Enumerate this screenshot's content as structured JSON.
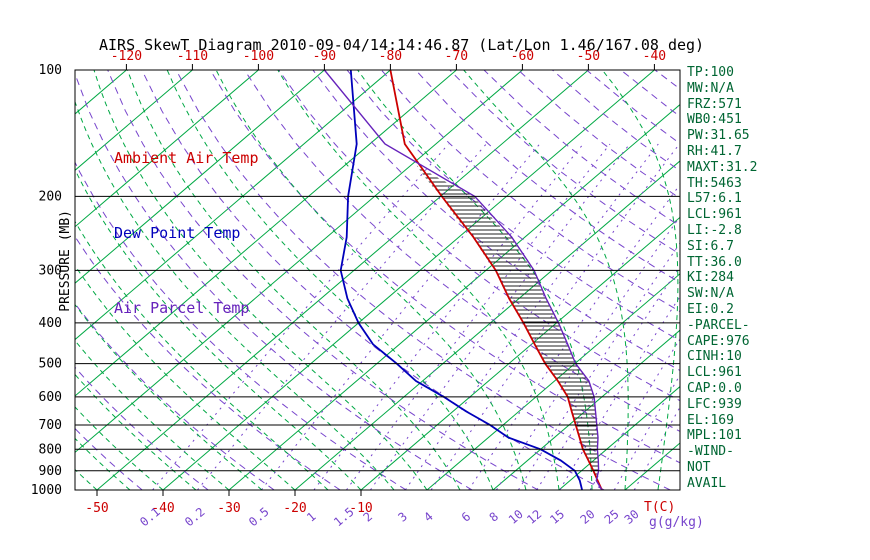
{
  "title": "AIRS SkewT Diagram 2010-09-04/14:14:46.87 (Lat/Lon 1.46/167.08 deg)",
  "colors": {
    "temperature": "#cc0000",
    "dewpoint": "#0000bb",
    "parcel": "#6622bb",
    "isotherm": "#00a844",
    "moist_adiabat": "#00a844",
    "dry_adiabat": "#7744cc",
    "mixing_ratio": "#7744cc",
    "stats_text": "#006633",
    "axis": "#000000",
    "hatch": "#222222"
  },
  "legend": {
    "items": [
      {
        "label": "Ambient Air Temp",
        "series": "temperature"
      },
      {
        "label": "Dew Point Temp",
        "series": "dewpoint"
      },
      {
        "label": "Air Parcel Temp",
        "series": "parcel"
      }
    ]
  },
  "axes": {
    "pressure_label": "PRESSURE (MB)",
    "pressure_ticks": [
      100,
      200,
      300,
      400,
      500,
      600,
      700,
      800,
      900,
      1000
    ],
    "pressure_range": [
      100,
      1000
    ],
    "pressure_scale": "log",
    "top_temp_ticks": [
      -120,
      -110,
      -100,
      -90,
      -80,
      -70,
      -60,
      -50,
      -40
    ],
    "bottom_temp_ticks": [
      -50,
      -40,
      -30,
      -20,
      -10
    ],
    "temp_unit_label": "T(C)",
    "mixing_ratio_ticks": [
      0.1,
      0.2,
      0.5,
      1,
      1.5,
      2,
      3,
      4,
      6,
      8,
      10,
      12,
      15,
      20,
      25,
      30
    ],
    "mixing_unit_label": "g(g/kg)"
  },
  "stats": {
    "lines": [
      "TP:100",
      "MW:N/A",
      "FRZ:571",
      "WB0:451",
      "PW:31.65",
      "RH:41.7",
      "MAXT:31.2",
      "TH:5463",
      "L57:6.1",
      "LCL:961",
      "LI:-2.8",
      "SI:6.7",
      "TT:36.0",
      "KI:284",
      "SW:N/A",
      "EI:0.2",
      "-PARCEL-",
      "CAPE:976",
      "CINH:10",
      "LCL:961",
      "CAP:0.0",
      "LFC:939",
      "EL:169",
      "MPL:101",
      "-WIND-",
      "NOT",
      "AVAIL"
    ]
  },
  "chart_data": {
    "type": "line",
    "subtype": "skew-t-log-p",
    "title": "AIRS SkewT Diagram 2010-09-04/14:14:46.87 (Lat/Lon 1.46/167.08 deg)",
    "xlabel": "Temperature (C), skewed 45 degrees",
    "ylabel": "PRESSURE (MB)",
    "ylim": [
      1000,
      100
    ],
    "grid": {
      "isotherm_min": -160,
      "isotherm_max": 40,
      "isotherm_step": 10,
      "moist_adiabat_start_min": -60,
      "moist_adiabat_start_max": 40,
      "moist_adiabat_start_step": 5,
      "dry_adiabat_theta_min": 230,
      "dry_adiabat_theta_max": 460,
      "dry_adiabat_theta_step": 10
    },
    "series": [
      {
        "name": "Ambient Air Temp",
        "color_key": "temperature",
        "pressure": [
          1000,
          950,
          900,
          850,
          800,
          750,
          700,
          650,
          600,
          550,
          500,
          450,
          400,
          350,
          300,
          250,
          200,
          150,
          100
        ],
        "values": [
          26.5,
          24.2,
          21.8,
          19.2,
          16.4,
          13.8,
          11.0,
          8.0,
          4.8,
          0.5,
          -4.5,
          -9.5,
          -15.0,
          -21.5,
          -28.5,
          -37.8,
          -49.8,
          -64.7,
          -80.0
        ]
      },
      {
        "name": "Dew Point Temp",
        "color_key": "dewpoint",
        "pressure": [
          1000,
          950,
          900,
          850,
          800,
          750,
          700,
          650,
          600,
          550,
          500,
          450,
          400,
          350,
          300,
          250,
          200,
          150,
          100
        ],
        "values": [
          23.5,
          21.5,
          19.0,
          15.0,
          10.0,
          3.0,
          -2.0,
          -8.0,
          -14.0,
          -21.0,
          -27.0,
          -34.0,
          -40.0,
          -46.0,
          -52.0,
          -57.0,
          -64.0,
          -72.0,
          -86.0
        ]
      },
      {
        "name": "Air Parcel Temp",
        "color_key": "parcel",
        "pressure": [
          1000,
          950,
          900,
          850,
          800,
          750,
          700,
          650,
          600,
          550,
          500,
          450,
          400,
          350,
          300,
          250,
          200,
          150,
          100
        ],
        "values": [
          26.5,
          24.0,
          22.6,
          20.7,
          18.6,
          16.6,
          14.2,
          11.6,
          8.8,
          5.2,
          0.1,
          -4.5,
          -9.7,
          -15.9,
          -22.7,
          -32.0,
          -44.8,
          -67.7,
          -90.0
        ]
      }
    ],
    "cape_hatch": {
      "from_pressure": 939,
      "to_pressure": 169
    }
  }
}
